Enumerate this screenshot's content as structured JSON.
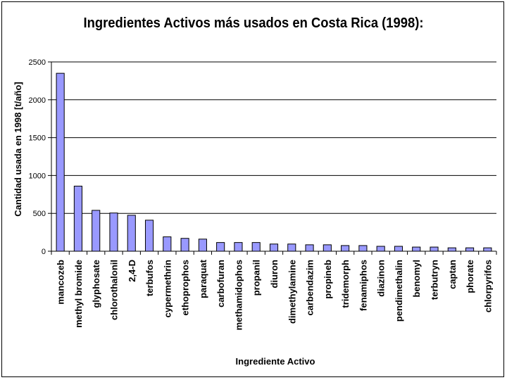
{
  "chart_data": {
    "type": "bar",
    "title": "Ingredientes Activos más usados en Costa Rica (1998):",
    "xlabel": "Ingrediente Activo",
    "ylabel": "Cantidad usada en 1998 [t/año]",
    "ylim": [
      0,
      2500
    ],
    "yticks": [
      0,
      500,
      1000,
      1500,
      2000,
      2500
    ],
    "grid": true,
    "legend": "none",
    "bar_color": "#9999ff",
    "categories": [
      "mancozeb",
      "methyl bromide",
      "glyphosate",
      "chlorothalonil",
      "2,4-D",
      "terbufos",
      "cypermethrin",
      "ethoprophos",
      "paraquat",
      "carbofuran",
      "methamidophos",
      "propanil",
      "diuron",
      "dimethylamine",
      "carbendazim",
      "propineb",
      "tridemorph",
      "fenamiphos",
      "diazinon",
      "pendimethalin",
      "benomyl",
      "terbutryn",
      "captan",
      "phorate",
      "chlorpyrifos"
    ],
    "values": [
      2350,
      860,
      540,
      505,
      475,
      410,
      190,
      170,
      160,
      115,
      115,
      115,
      95,
      95,
      85,
      85,
      75,
      75,
      65,
      65,
      55,
      55,
      45,
      45,
      45
    ]
  }
}
